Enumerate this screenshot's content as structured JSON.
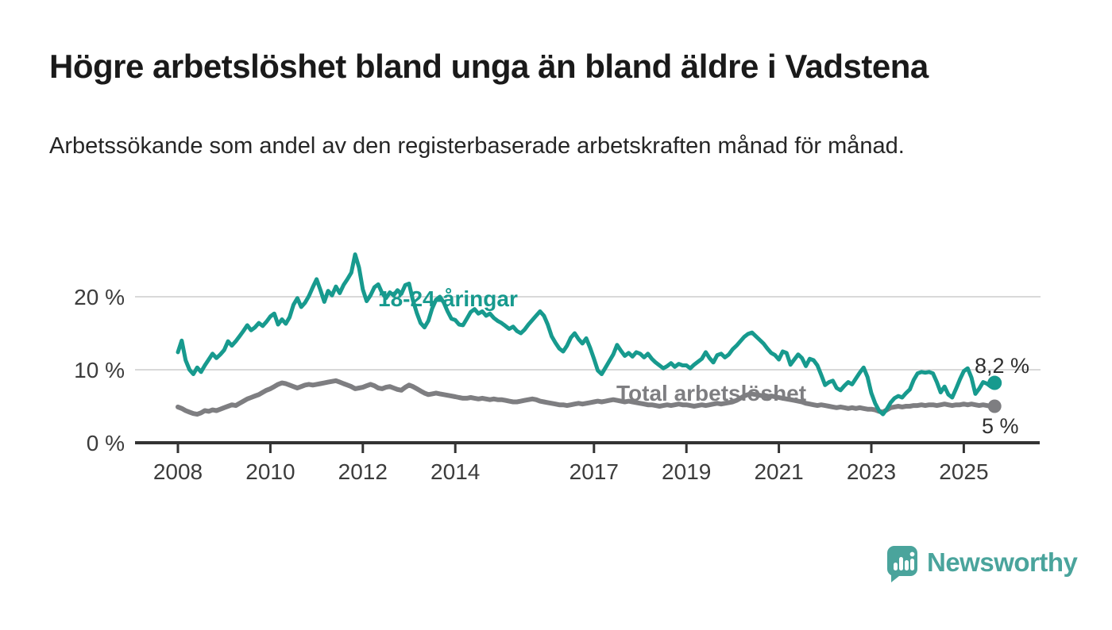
{
  "page": {
    "title": "Högre arbetslöshet bland unga än bland äldre i Vadstena",
    "subtitle": "Arbetssökande som andel av den registerbaserade arbetskraften månad för månad."
  },
  "branding": {
    "logo_text": "Newsworthy",
    "logo_icon": "speech-bubble-bar-chart-icon",
    "logo_color": "#4aa49c"
  },
  "colors": {
    "youth_line": "#179a8e",
    "total_line": "#7e7e81",
    "gridline": "#d9d9d9",
    "axis": "#333333",
    "title_text": "#1a1a1a",
    "value_label_text": "#2e2e2e"
  },
  "chart_data": {
    "type": "line",
    "title": "Högre arbetslöshet bland unga än bland äldre i Vadstena",
    "subtitle": "Arbetssökande som andel av den registerbaserade arbetskraften månad för månad.",
    "unit": "%",
    "x_unit": "month",
    "x_start_label": "2008-01",
    "x_end_label": "2025-09",
    "ylim": [
      0,
      27
    ],
    "grid": "horizontal",
    "legend_position": "inline-labels",
    "yticks": [
      {
        "value": 0,
        "label": "0 %"
      },
      {
        "value": 10,
        "label": "10 %"
      },
      {
        "value": 20,
        "label": "20 %"
      }
    ],
    "xticks": [
      2008,
      2010,
      2012,
      2014,
      2017,
      2019,
      2021,
      2023,
      2025
    ],
    "series": [
      {
        "name": "18-24-åringar",
        "color": "#179a8e",
        "end_label": "8,2 %",
        "end_value": 8.2,
        "values": [
          12.4,
          14.0,
          11.3,
          10.0,
          9.4,
          10.3,
          9.7,
          10.6,
          11.4,
          12.2,
          11.6,
          12.1,
          12.7,
          13.9,
          13.3,
          13.9,
          14.6,
          15.3,
          16.1,
          15.4,
          15.8,
          16.4,
          16.0,
          16.6,
          17.3,
          17.7,
          16.2,
          16.9,
          16.3,
          17.2,
          18.9,
          19.8,
          18.6,
          19.2,
          20.1,
          21.3,
          22.4,
          20.9,
          19.3,
          20.8,
          20.2,
          21.4,
          20.5,
          21.6,
          22.4,
          23.3,
          25.8,
          24.0,
          21.0,
          19.4,
          20.2,
          21.3,
          21.7,
          20.5,
          19.8,
          20.6,
          20.2,
          20.9,
          20.4,
          21.6,
          21.8,
          19.5,
          17.8,
          16.4,
          15.8,
          16.7,
          18.4,
          19.6,
          20.0,
          19.2,
          18.0,
          17.0,
          16.8,
          16.2,
          16.1,
          17.0,
          17.9,
          18.3,
          17.7,
          18.0,
          17.4,
          17.7,
          17.1,
          16.7,
          16.4,
          16.0,
          15.6,
          15.9,
          15.3,
          15.0,
          15.5,
          16.2,
          16.8,
          17.4,
          18.0,
          17.4,
          16.2,
          14.6,
          13.7,
          12.9,
          12.5,
          13.3,
          14.4,
          15.0,
          14.2,
          13.6,
          14.3,
          13.0,
          11.5,
          9.9,
          9.4,
          10.3,
          11.2,
          12.1,
          13.4,
          12.6,
          11.9,
          12.3,
          11.8,
          12.4,
          12.2,
          11.7,
          12.2,
          11.5,
          11.0,
          10.6,
          10.2,
          10.5,
          10.9,
          10.4,
          10.8,
          10.6,
          10.6,
          10.2,
          10.7,
          11.1,
          11.5,
          12.4,
          11.6,
          11.0,
          12.0,
          12.2,
          11.7,
          12.1,
          12.8,
          13.3,
          13.9,
          14.5,
          14.9,
          15.1,
          14.6,
          14.1,
          13.6,
          12.9,
          12.3,
          12.0,
          11.4,
          12.5,
          12.3,
          10.7,
          11.4,
          12.1,
          11.6,
          10.5,
          11.5,
          11.3,
          10.6,
          9.3,
          7.9,
          8.3,
          8.5,
          7.5,
          7.2,
          7.8,
          8.3,
          8.0,
          8.8,
          9.6,
          10.3,
          9.0,
          6.8,
          5.4,
          4.4,
          3.9,
          4.6,
          5.5,
          6.1,
          6.4,
          6.2,
          6.8,
          7.3,
          8.6,
          9.5,
          9.7,
          9.6,
          9.7,
          9.5,
          8.3,
          6.9,
          7.7,
          6.6,
          6.2,
          7.4,
          8.7,
          9.8,
          10.2,
          8.9,
          6.7,
          7.4,
          8.3,
          8.1,
          7.7,
          8.2
        ]
      },
      {
        "name": "Total arbetslöshet",
        "color": "#7e7e81",
        "end_label": "5 %",
        "end_value": 5.0,
        "values": [
          4.9,
          4.7,
          4.4,
          4.2,
          4.0,
          3.9,
          4.1,
          4.4,
          4.3,
          4.5,
          4.4,
          4.6,
          4.8,
          5.0,
          5.2,
          5.1,
          5.4,
          5.7,
          6.0,
          6.2,
          6.4,
          6.6,
          6.9,
          7.2,
          7.4,
          7.7,
          8.0,
          8.2,
          8.1,
          7.9,
          7.7,
          7.5,
          7.7,
          7.9,
          8.0,
          7.9,
          8.0,
          8.1,
          8.2,
          8.3,
          8.4,
          8.5,
          8.3,
          8.1,
          7.9,
          7.7,
          7.4,
          7.5,
          7.6,
          7.8,
          8.0,
          7.8,
          7.5,
          7.4,
          7.6,
          7.7,
          7.5,
          7.3,
          7.2,
          7.6,
          7.9,
          7.7,
          7.4,
          7.1,
          6.8,
          6.6,
          6.7,
          6.8,
          6.7,
          6.6,
          6.5,
          6.4,
          6.3,
          6.2,
          6.1,
          6.1,
          6.2,
          6.1,
          6.0,
          6.1,
          6.0,
          5.9,
          6.0,
          5.9,
          5.9,
          5.8,
          5.7,
          5.6,
          5.6,
          5.7,
          5.8,
          5.9,
          6.0,
          5.9,
          5.7,
          5.6,
          5.5,
          5.4,
          5.3,
          5.2,
          5.2,
          5.1,
          5.2,
          5.3,
          5.4,
          5.3,
          5.4,
          5.5,
          5.6,
          5.7,
          5.6,
          5.7,
          5.8,
          5.9,
          5.8,
          5.7,
          5.6,
          5.7,
          5.6,
          5.5,
          5.4,
          5.3,
          5.2,
          5.2,
          5.1,
          5.0,
          5.1,
          5.2,
          5.1,
          5.2,
          5.3,
          5.2,
          5.2,
          5.1,
          5.0,
          5.1,
          5.2,
          5.1,
          5.2,
          5.3,
          5.4,
          5.3,
          5.4,
          5.5,
          5.6,
          5.8,
          6.1,
          6.4,
          6.6,
          6.7,
          6.6,
          6.5,
          6.4,
          6.3,
          6.4,
          6.3,
          6.2,
          6.1,
          6.0,
          5.9,
          5.8,
          5.7,
          5.6,
          5.4,
          5.3,
          5.2,
          5.1,
          5.2,
          5.1,
          5.0,
          4.9,
          4.8,
          4.9,
          4.8,
          4.7,
          4.8,
          4.7,
          4.8,
          4.7,
          4.6,
          4.6,
          4.5,
          4.3,
          4.2,
          4.5,
          4.8,
          4.9,
          5.0,
          4.9,
          5.0,
          5.0,
          5.1,
          5.1,
          5.2,
          5.1,
          5.2,
          5.2,
          5.1,
          5.2,
          5.3,
          5.2,
          5.1,
          5.2,
          5.2,
          5.3,
          5.2,
          5.3,
          5.2,
          5.1,
          5.2,
          5.1,
          5.0,
          5.0
        ]
      }
    ]
  }
}
